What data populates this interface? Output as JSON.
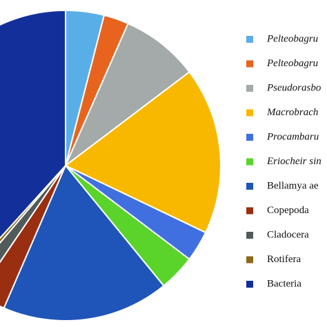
{
  "chart_data": {
    "type": "pie",
    "categories": [
      "Pelteobagru",
      "Pelteobagru",
      "Pseudorasbo",
      "Macrobrach",
      "Procambaru",
      "Eriocheir sin",
      "Bellamya ae",
      "Copepoda",
      "Cladocera",
      "Rotifera",
      "Bacteria"
    ],
    "values": [
      4,
      2.6,
      8.1,
      17.4,
      3.2,
      3.8,
      17.4,
      3,
      1.7,
      0.5,
      38.3
    ],
    "colors": [
      "#5aaee8",
      "#e8641e",
      "#a3aaa9",
      "#f9b800",
      "#4070e0",
      "#5ad42a",
      "#1f55b8",
      "#9a2e10",
      "#505b5a",
      "#8a6a1a",
      "#13309a"
    ]
  }
}
